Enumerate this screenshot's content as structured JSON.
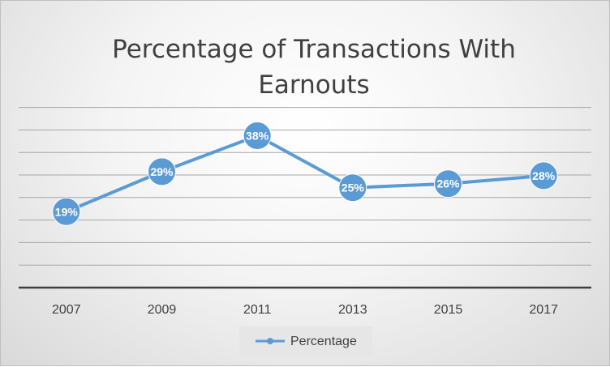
{
  "chart_data": {
    "type": "line",
    "title_lines": [
      "Percentage of Transactions With",
      "Earnouts"
    ],
    "categories": [
      "2007",
      "2009",
      "2011",
      "2013",
      "2015",
      "2017"
    ],
    "series": [
      {
        "name": "Percentage",
        "values": [
          19,
          29,
          38,
          25,
          26,
          28
        ],
        "labels": [
          "19%",
          "29%",
          "38%",
          "25%",
          "26%",
          "28%"
        ],
        "color": "#5b9bd5"
      }
    ],
    "ylim": [
      0,
      45
    ],
    "grid": true,
    "legend_position": "bottom"
  },
  "colors": {
    "gridline": "#a6a6a6",
    "axis": "#404040",
    "text": "#404040",
    "marker_outline": "#ffffff"
  }
}
